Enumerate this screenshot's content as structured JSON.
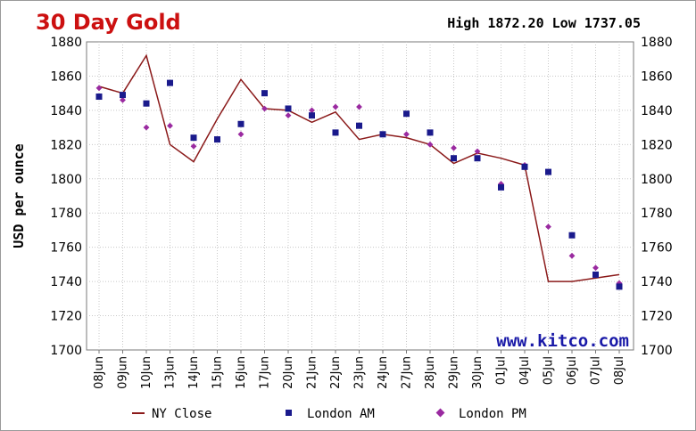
{
  "chart_data": {
    "type": "line",
    "title": "30 Day Gold",
    "high_low": "High 1872.20 Low 1737.05",
    "ylabel": "USD per ounce",
    "xlabel": "",
    "ylim": [
      1700,
      1880
    ],
    "yticks": [
      1700,
      1720,
      1740,
      1760,
      1780,
      1800,
      1820,
      1840,
      1860,
      1880
    ],
    "grid": true,
    "legend_position": "bottom",
    "watermark": "www.kitco.com",
    "categories": [
      "08Jun",
      "09Jun",
      "10Jun",
      "13Jun",
      "14Jun",
      "15Jun",
      "16Jun",
      "17Jun",
      "20Jun",
      "21Jun",
      "22Jun",
      "23Jun",
      "24Jun",
      "27Jun",
      "28Jun",
      "29Jun",
      "30Jun",
      "01Jul",
      "04Jul",
      "05Jul",
      "06Jul",
      "07Jul",
      "08Jul"
    ],
    "series": [
      {
        "name": "NY Close",
        "style": "line",
        "color": "#8b1a1a",
        "values": [
          1854,
          1850,
          1872,
          1820,
          1810,
          1835,
          1858,
          1841,
          1840,
          1833,
          1839,
          1823,
          1826,
          1824,
          1820,
          1809,
          1815,
          1812,
          1808,
          1740,
          1740,
          1742,
          1744
        ]
      },
      {
        "name": "London AM",
        "style": "square",
        "color": "#1a1a8c",
        "values": [
          1848,
          1849,
          1844,
          1856,
          1824,
          1823,
          1832,
          1850,
          1841,
          1837,
          1827,
          1831,
          1826,
          1838,
          1827,
          1812,
          1812,
          1795,
          1807,
          1804,
          1767,
          1744,
          1737
        ]
      },
      {
        "name": "London PM",
        "style": "diamond",
        "color": "#9a2aa0",
        "values": [
          1853,
          1846,
          1830,
          1831,
          1819,
          1823,
          1826,
          1841,
          1837,
          1840,
          1842,
          1842,
          1826,
          1826,
          1820,
          1818,
          1816,
          1797,
          1808,
          1772,
          1755,
          1748,
          1739
        ]
      }
    ]
  }
}
